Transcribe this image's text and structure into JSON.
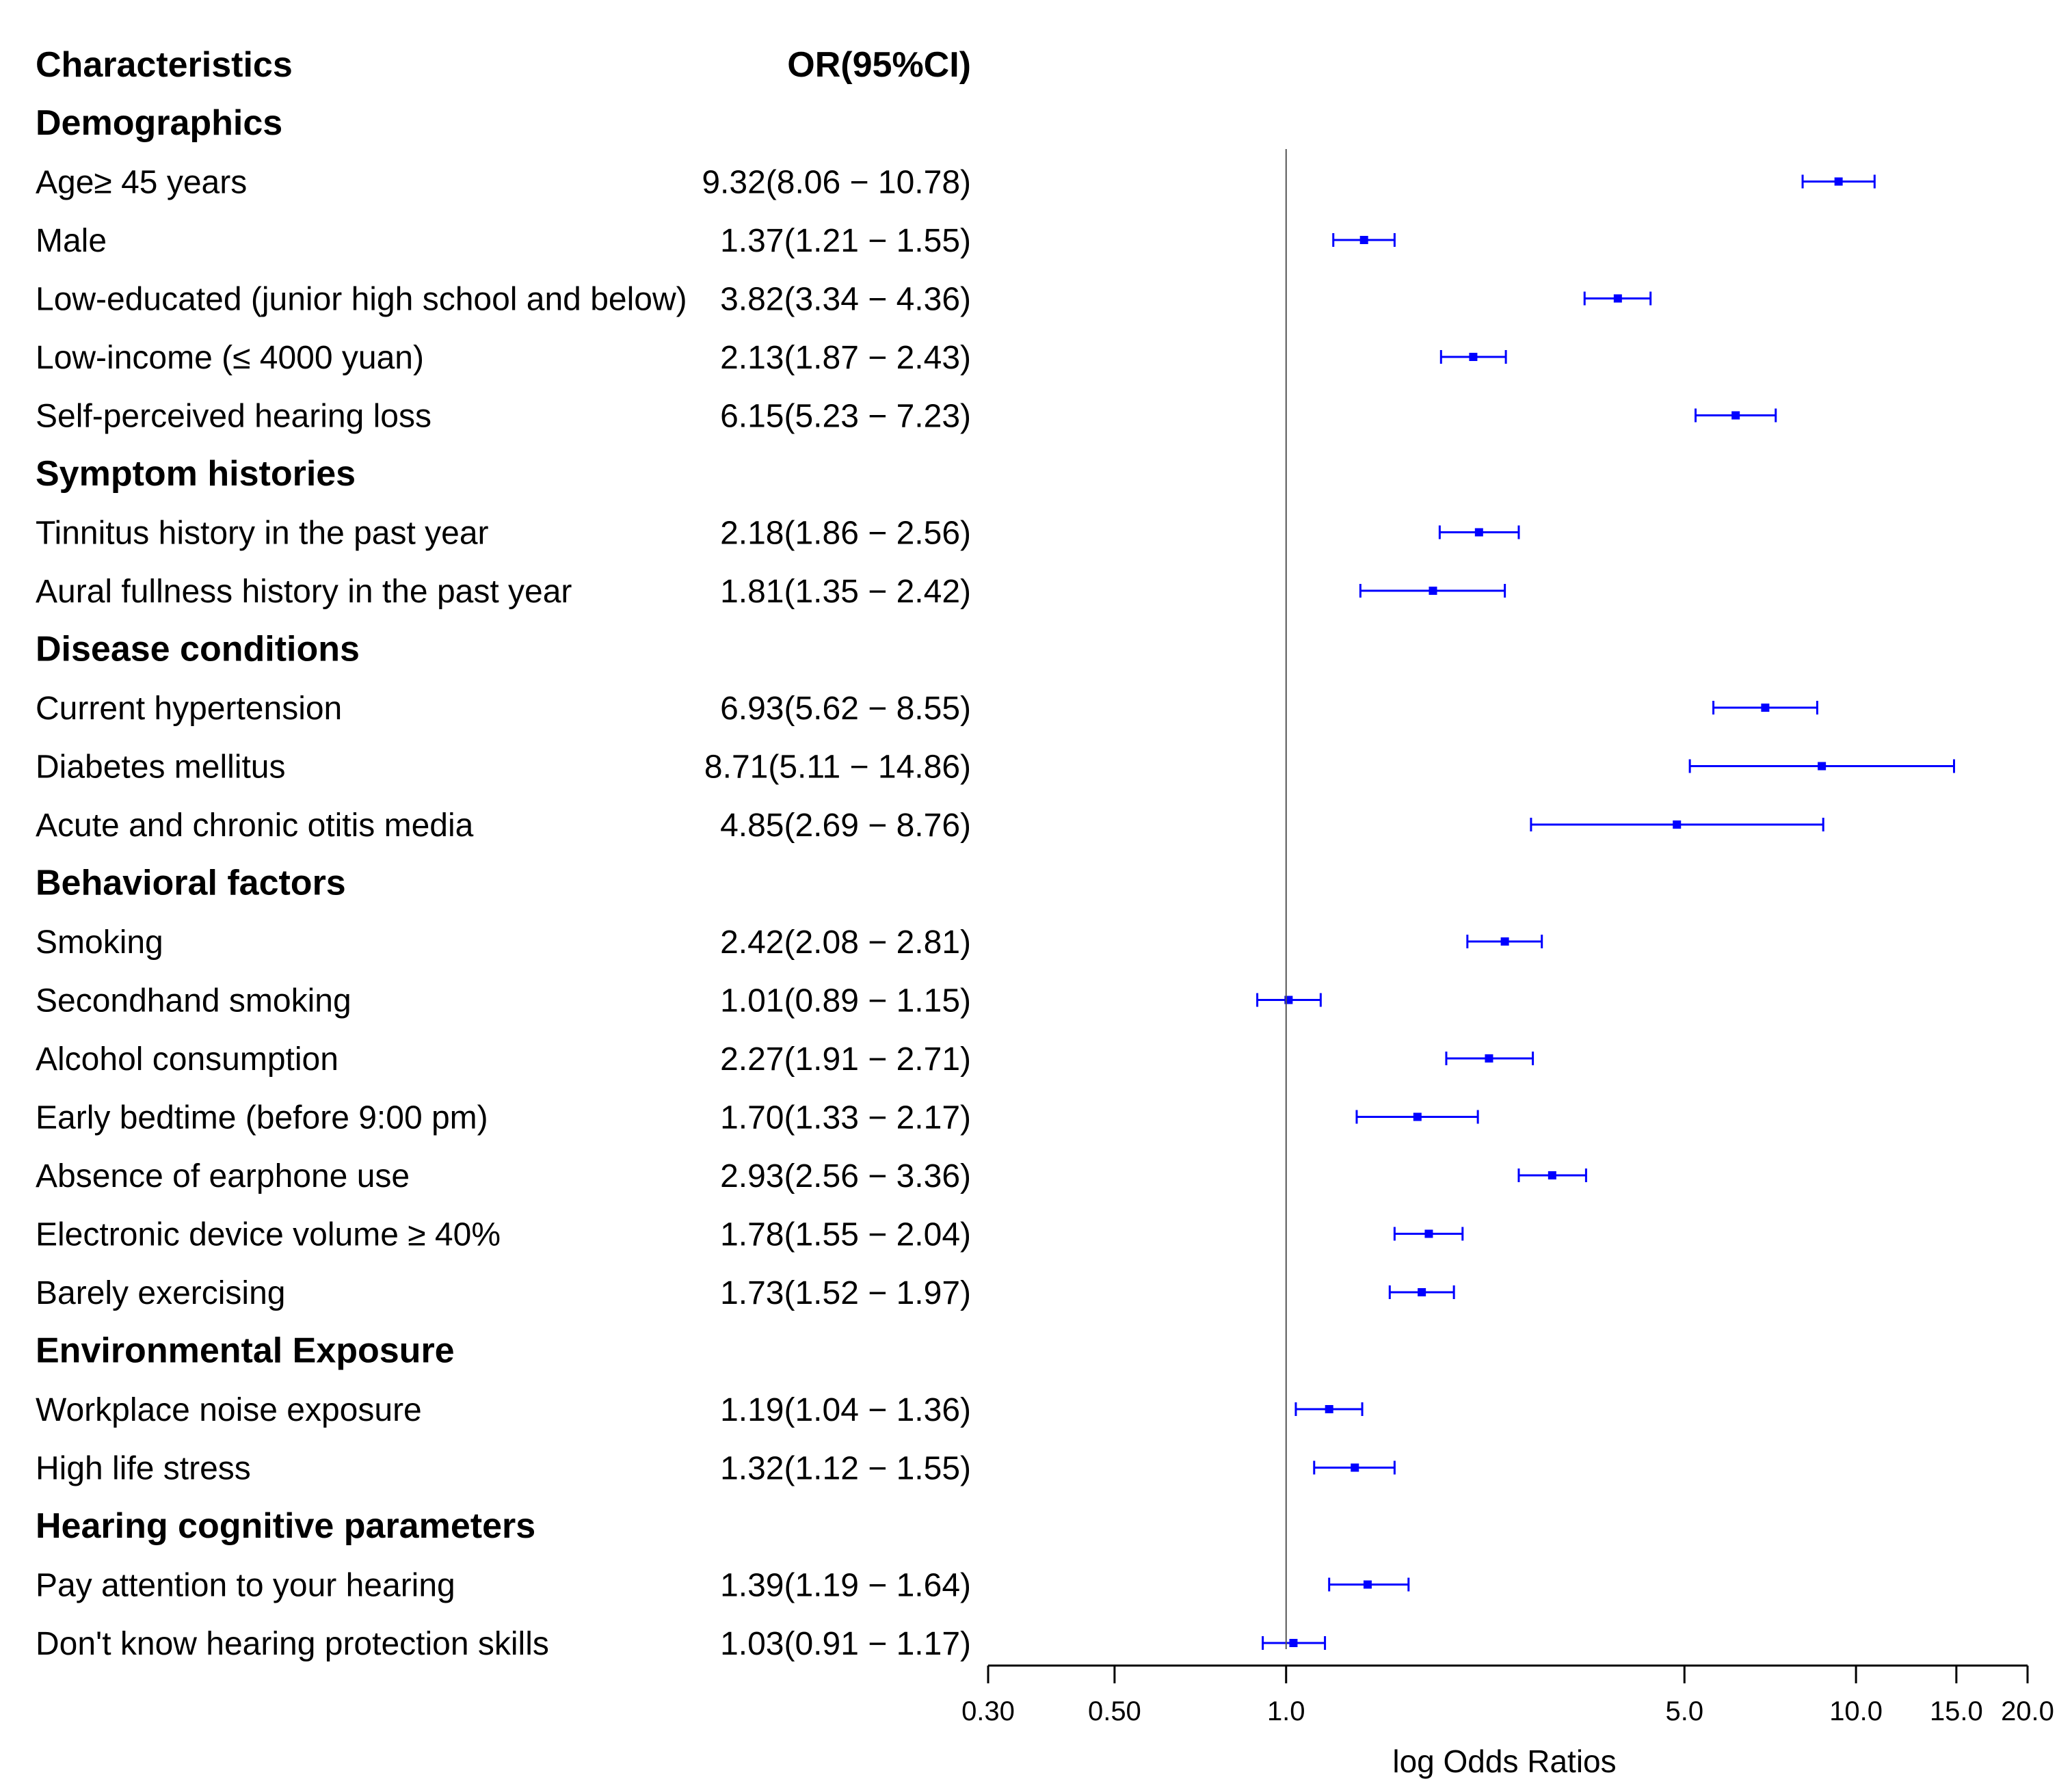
{
  "chart_data": {
    "type": "forest",
    "column_headers": {
      "characteristics": "Characteristics",
      "or": "OR(95%CI)"
    },
    "xlabel": "log Odds Ratios",
    "xscale": "log",
    "xlim": [
      0.3,
      20.0
    ],
    "xticks": [
      {
        "value": 0.3,
        "label": "0.30"
      },
      {
        "value": 0.5,
        "label": "0.50"
      },
      {
        "value": 1.0,
        "label": "1.0"
      },
      {
        "value": 5.0,
        "label": "5.0"
      },
      {
        "value": 10.0,
        "label": "10.0"
      },
      {
        "value": 15.0,
        "label": "15.0"
      },
      {
        "value": 20.0,
        "label": "20.0"
      }
    ],
    "reference_line": 1.0,
    "marker_color": "#0000ff",
    "rows": [
      {
        "kind": "group",
        "label": "Demographics"
      },
      {
        "kind": "item",
        "label": "Age≥ 45 years",
        "or_text": "9.32(8.06 − 10.78)",
        "or": 9.32,
        "lo": 8.06,
        "hi": 10.78
      },
      {
        "kind": "item",
        "label": "Male",
        "or_text": "1.37(1.21 − 1.55)",
        "or": 1.37,
        "lo": 1.21,
        "hi": 1.55
      },
      {
        "kind": "item",
        "label": "Low-educated (junior high school and below)",
        "or_text": "3.82(3.34 − 4.36)",
        "or": 3.82,
        "lo": 3.34,
        "hi": 4.36
      },
      {
        "kind": "item",
        "label": "Low-income (≤ 4000 yuan)",
        "or_text": "2.13(1.87 − 2.43)",
        "or": 2.13,
        "lo": 1.87,
        "hi": 2.43
      },
      {
        "kind": "item",
        "label": "Self-perceived hearing loss",
        "or_text": "6.15(5.23 − 7.23)",
        "or": 6.15,
        "lo": 5.23,
        "hi": 7.23
      },
      {
        "kind": "group",
        "label": "Symptom histories"
      },
      {
        "kind": "item",
        "label": "Tinnitus history in the past year",
        "or_text": "2.18(1.86 − 2.56)",
        "or": 2.18,
        "lo": 1.86,
        "hi": 2.56
      },
      {
        "kind": "item",
        "label": "Aural fullness  history in the past year",
        "or_text": "1.81(1.35 − 2.42)",
        "or": 1.81,
        "lo": 1.35,
        "hi": 2.42
      },
      {
        "kind": "group",
        "label": "Disease conditions"
      },
      {
        "kind": "item",
        "label": "Current hypertension",
        "or_text": "6.93(5.62 − 8.55)",
        "or": 6.93,
        "lo": 5.62,
        "hi": 8.55
      },
      {
        "kind": "item",
        "label": "Diabetes mellitus",
        "or_text": "8.71(5.11 − 14.86)",
        "or": 8.71,
        "lo": 5.11,
        "hi": 14.86
      },
      {
        "kind": "item",
        "label": "Acute and chronic otitis media",
        "or_text": "4.85(2.69 − 8.76)",
        "or": 4.85,
        "lo": 2.69,
        "hi": 8.76
      },
      {
        "kind": "group",
        "label": "Behavioral factors"
      },
      {
        "kind": "item",
        "label": "Smoking",
        "or_text": "2.42(2.08 − 2.81)",
        "or": 2.42,
        "lo": 2.08,
        "hi": 2.81
      },
      {
        "kind": "item",
        "label": "Secondhand smoking",
        "or_text": "1.01(0.89 − 1.15)",
        "or": 1.01,
        "lo": 0.89,
        "hi": 1.15
      },
      {
        "kind": "item",
        "label": "Alcohol consumption",
        "or_text": "2.27(1.91 − 2.71)",
        "or": 2.27,
        "lo": 1.91,
        "hi": 2.71
      },
      {
        "kind": "item",
        "label": "Early bedtime (before 9:00 pm)",
        "or_text": "1.70(1.33 − 2.17)",
        "or": 1.7,
        "lo": 1.33,
        "hi": 2.17
      },
      {
        "kind": "item",
        "label": "Absence of earphone use",
        "or_text": "2.93(2.56 − 3.36)",
        "or": 2.93,
        "lo": 2.56,
        "hi": 3.36
      },
      {
        "kind": "item",
        "label": "Electronic device volume ≥ 40%",
        "or_text": "1.78(1.55 − 2.04)",
        "or": 1.78,
        "lo": 1.55,
        "hi": 2.04
      },
      {
        "kind": "item",
        "label": "Barely exercising",
        "or_text": "1.73(1.52 − 1.97)",
        "or": 1.73,
        "lo": 1.52,
        "hi": 1.97
      },
      {
        "kind": "group",
        "label": "Environmental Exposure"
      },
      {
        "kind": "item",
        "label": "Workplace noise exposure",
        "or_text": "1.19(1.04 − 1.36)",
        "or": 1.19,
        "lo": 1.04,
        "hi": 1.36
      },
      {
        "kind": "item",
        "label": "High life stress",
        "or_text": "1.32(1.12 − 1.55)",
        "or": 1.32,
        "lo": 1.12,
        "hi": 1.55
      },
      {
        "kind": "group",
        "label": "Hearing cognitive parameters"
      },
      {
        "kind": "item",
        "label": "Pay attention to your hearing",
        "or_text": "1.39(1.19 − 1.64)",
        "or": 1.39,
        "lo": 1.19,
        "hi": 1.64
      },
      {
        "kind": "item",
        "label": "Don't know hearing protection skills",
        "or_text": "1.03(0.91 − 1.17)",
        "or": 1.03,
        "lo": 0.91,
        "hi": 1.17
      }
    ]
  }
}
